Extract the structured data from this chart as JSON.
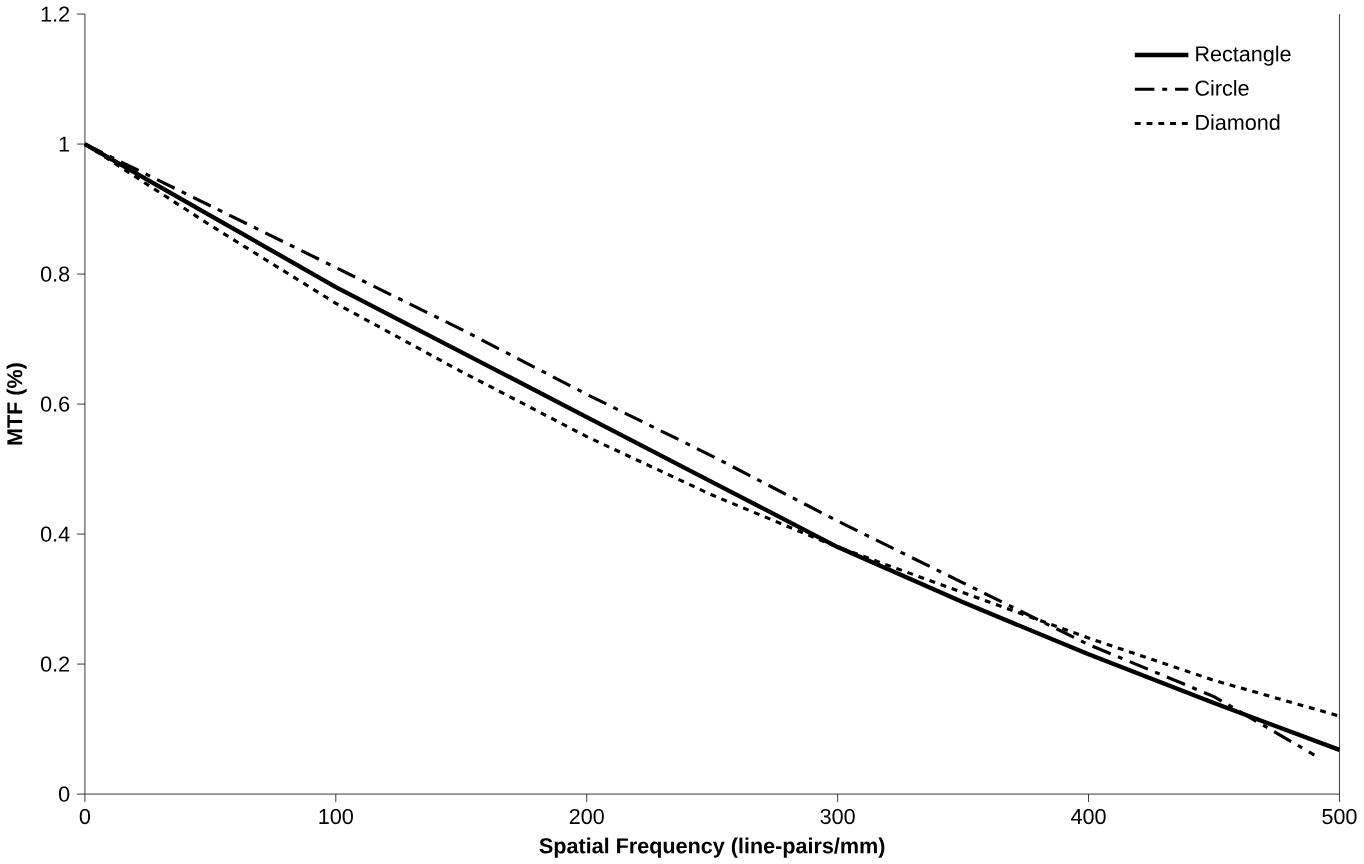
{
  "chart_data": {
    "type": "line",
    "xlabel": "Spatial Frequency (line-pairs/mm)",
    "ylabel": "MTF (%)",
    "xlim": [
      0,
      500
    ],
    "xticks": [
      0,
      100,
      200,
      300,
      400,
      500
    ],
    "ylim": [
      0,
      1.2
    ],
    "yticks": [
      0,
      0.2,
      0.4,
      0.6,
      0.8,
      1,
      1.2
    ],
    "grid": false,
    "legend": "top right",
    "marker": "none",
    "series": [
      {
        "name": "Rectangle",
        "color": "#000000",
        "line_style": "solid",
        "x": [
          0,
          50,
          100,
          150,
          200,
          250,
          300,
          350,
          400,
          450,
          500
        ],
        "values": [
          1.0,
          0.89,
          0.78,
          0.68,
          0.58,
          0.48,
          0.38,
          0.295,
          0.215,
          0.14,
          0.068
        ]
      },
      {
        "name": "Circle",
        "color": "#000000",
        "line_style": "dashed",
        "x": [
          0,
          50,
          100,
          150,
          200,
          250,
          300,
          350,
          400,
          450,
          490
        ],
        "values": [
          1.0,
          0.905,
          0.81,
          0.715,
          0.615,
          0.52,
          0.42,
          0.325,
          0.23,
          0.15,
          0.06
        ]
      },
      {
        "name": "Diamond",
        "color": "#000000",
        "line_style": "dotted",
        "x": [
          0,
          50,
          100,
          150,
          200,
          250,
          300,
          350,
          400,
          450,
          500
        ],
        "values": [
          1.0,
          0.875,
          0.755,
          0.65,
          0.55,
          0.46,
          0.38,
          0.31,
          0.24,
          0.175,
          0.12
        ]
      }
    ]
  }
}
